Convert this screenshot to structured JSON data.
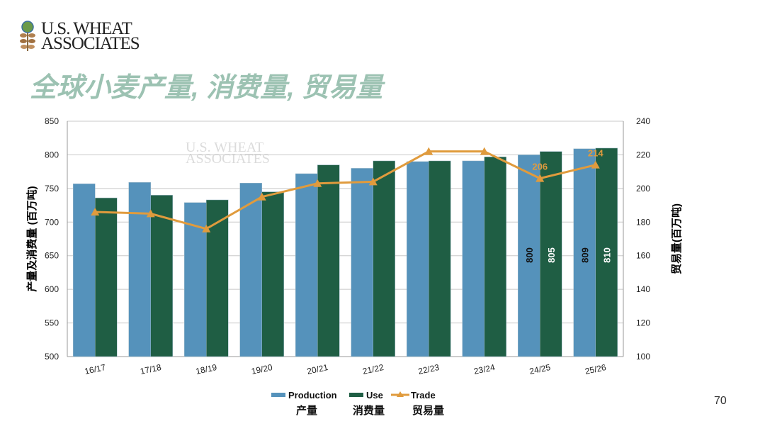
{
  "logo": {
    "line1": "U.S. WHEAT",
    "line2": "ASSOCIATES"
  },
  "title": "全球小麦产量, 消费量, 贸易量",
  "page_number": "70",
  "watermark": {
    "line1": "U.S. WHEAT",
    "line2": "ASSOCIATES"
  },
  "chart_data": {
    "type": "bar",
    "categories": [
      "16/17",
      "17/18",
      "18/19",
      "19/20",
      "20/21",
      "21/22",
      "22/23",
      "23/24",
      "24/25",
      "25/26"
    ],
    "series": [
      {
        "name": "Production",
        "name_cn": "产量",
        "type": "bar",
        "axis": "left",
        "color": "#5592bb",
        "values": [
          757,
          759,
          729,
          758,
          772,
          780,
          790,
          791,
          800,
          809
        ],
        "labels": {
          "8": "800",
          "9": "809"
        }
      },
      {
        "name": "Use",
        "name_cn": "消费量",
        "type": "bar",
        "axis": "left",
        "color": "#1f5e44",
        "values": [
          736,
          740,
          733,
          745,
          785,
          791,
          791,
          797,
          805,
          810
        ],
        "labels": {
          "8": "805",
          "9": "810"
        }
      },
      {
        "name": "Trade",
        "name_cn": "贸易量",
        "type": "line",
        "axis": "right",
        "color": "#e09b3d",
        "values": [
          186,
          185,
          176,
          195,
          203,
          204,
          222,
          222,
          206,
          214
        ],
        "labels": {
          "8": "206",
          "9": "214"
        }
      }
    ],
    "ylabel": "产量及消费量 (百万吨)",
    "y2label": "贸易量(百万吨)",
    "ylim": [
      500,
      850
    ],
    "yticks": [
      500,
      550,
      600,
      650,
      700,
      750,
      800,
      850
    ],
    "y2lim": [
      100,
      240
    ],
    "y2ticks": [
      100,
      120,
      140,
      160,
      180,
      200,
      220,
      240
    ],
    "grid": true,
    "legend": "bottom"
  }
}
